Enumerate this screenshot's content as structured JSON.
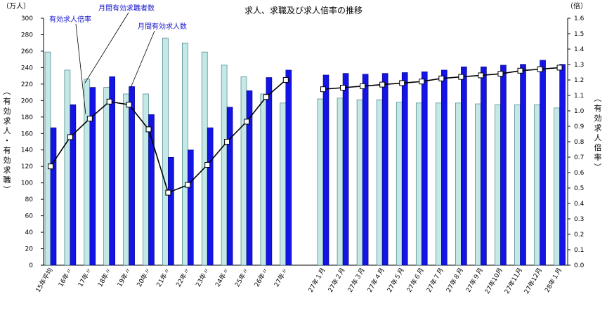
{
  "chart_data": {
    "type": "bar",
    "title": "求人、求職及び求人倍率の推移",
    "left_unit": "（万人）",
    "right_unit": "（倍）",
    "left_axis_label": [
      "（",
      "有",
      "効",
      "求",
      "人",
      "・",
      "有",
      "効",
      "求",
      "職",
      "）"
    ],
    "right_axis_label": [
      "（",
      "有",
      "効",
      "求",
      "人",
      "倍",
      "率",
      "）"
    ],
    "ylim_left": [
      0,
      300
    ],
    "yticks_left": [
      "0",
      "20",
      "40",
      "60",
      "80",
      "100",
      "120",
      "140",
      "160",
      "180",
      "200",
      "220",
      "240",
      "260",
      "280",
      "300"
    ],
    "ylim_right": [
      0,
      1.6
    ],
    "yticks_right": [
      "0.0",
      "0.1",
      "0.2",
      "0.3",
      "0.4",
      "0.5",
      "0.6",
      "0.7",
      "0.8",
      "0.9",
      "1.0",
      "1.1",
      "1.2",
      "1.3",
      "1.4",
      "1.5",
      "1.6"
    ],
    "categories": [
      "15年平均",
      "16年〃",
      "17年〃",
      "18年〃",
      "19年〃",
      "20年〃",
      "21年〃",
      "22年〃",
      "23年〃",
      "24年〃",
      "25年〃",
      "26年〃",
      "27年〃",
      "27年１月",
      "27年２月",
      "27年３月",
      "27年４月",
      "27年５月",
      "27年６月",
      "27年７月",
      "27年８月",
      "27年９月",
      "27年10月",
      "27年11月",
      "27年12月",
      "28年１月"
    ],
    "series": [
      {
        "name": "月間有効求職者数",
        "color": "#c4e8e6",
        "axis": "left",
        "values": [
          259,
          237,
          226,
          216,
          208,
          208,
          276,
          270,
          259,
          243,
          229,
          208,
          197,
          202,
          203,
          201,
          201,
          198,
          197,
          197,
          197,
          196,
          195,
          195,
          195,
          191
        ]
      },
      {
        "name": "月間有効求人数",
        "color": "#1414e6",
        "axis": "left",
        "values": [
          167,
          195,
          216,
          229,
          217,
          183,
          131,
          140,
          167,
          192,
          212,
          228,
          237,
          231,
          233,
          232,
          233,
          234,
          235,
          237,
          241,
          241,
          243,
          244,
          249,
          244
        ]
      },
      {
        "name": "有効求人倍率",
        "color": "#000000",
        "axis": "right",
        "type": "line",
        "values": [
          0.64,
          0.83,
          0.95,
          1.06,
          1.04,
          0.88,
          0.47,
          0.52,
          0.65,
          0.8,
          0.93,
          1.09,
          1.2,
          1.14,
          1.15,
          1.16,
          1.17,
          1.18,
          1.19,
          1.21,
          1.22,
          1.23,
          1.24,
          1.26,
          1.27,
          1.28
        ]
      }
    ],
    "annotations": [
      {
        "text": "有効求人倍率",
        "color": "#1414cc"
      },
      {
        "text": "月間有効求職者数",
        "color": "#1414cc"
      },
      {
        "text": "月間有効求人数",
        "color": "#1414cc"
      }
    ],
    "legend": "none",
    "grid": false
  }
}
